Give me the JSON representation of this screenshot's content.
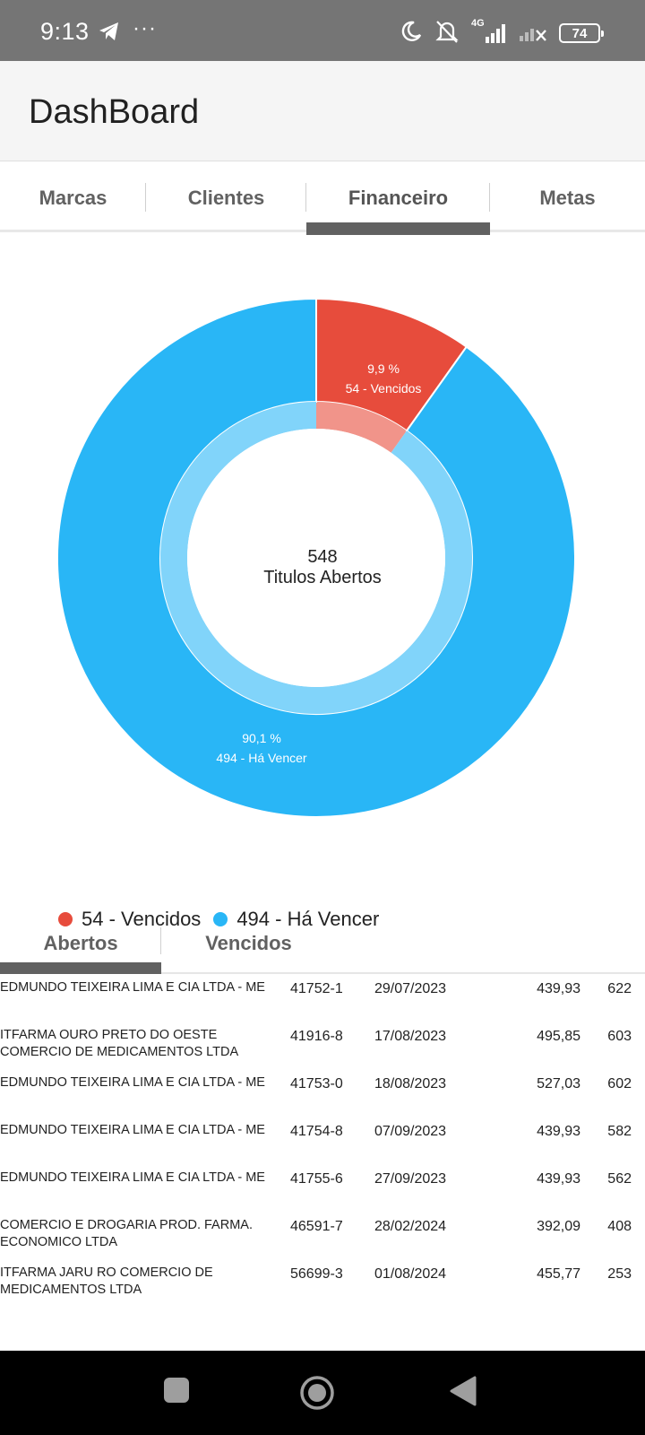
{
  "status_bar": {
    "time": "9:13",
    "more": "···",
    "network": "4G",
    "battery": "74",
    "icons": [
      "telegram-icon",
      "moon-icon",
      "bell-off-icon",
      "signal-icon",
      "signal-x-icon",
      "battery-icon"
    ]
  },
  "app_bar": {
    "title": "DashBoard"
  },
  "tabs": [
    {
      "label": "Marcas"
    },
    {
      "label": "Clientes"
    },
    {
      "label": "Financeiro",
      "active": true
    },
    {
      "label": "Metas"
    }
  ],
  "chart_data": {
    "type": "pie",
    "center_value": "548",
    "center_label": "Titulos Abertos",
    "slices": [
      {
        "label": "54 - Vencidos",
        "value": 54,
        "percent_label": "9,9 %",
        "color": "#e74c3c",
        "inner_color": "#f1948a"
      },
      {
        "label": "494 - Há Vencer",
        "value": 494,
        "percent_label": "90,1 %",
        "color": "#29b6f6",
        "inner_color": "#81d4fa"
      }
    ],
    "legend": [
      "54 - Vencidos",
      "494 - Há Vencer"
    ],
    "legend_position": "bottom-left"
  },
  "sub_tabs": [
    {
      "label": "Abertos",
      "active": true
    },
    {
      "label": "Vencidos"
    }
  ],
  "rows": [
    {
      "name": "EDMUNDO TEIXEIRA LIMA E CIA LTDA - ME",
      "code": "41752-1",
      "date": "29/07/2023",
      "value": "439,93",
      "days": "622"
    },
    {
      "name": "ITFARMA OURO PRETO DO OESTE COMERCIO DE MEDICAMENTOS LTDA",
      "code": "41916-8",
      "date": "17/08/2023",
      "value": "495,85",
      "days": "603"
    },
    {
      "name": "EDMUNDO TEIXEIRA LIMA E CIA LTDA - ME",
      "code": "41753-0",
      "date": "18/08/2023",
      "value": "527,03",
      "days": "602"
    },
    {
      "name": "EDMUNDO TEIXEIRA LIMA E CIA LTDA - ME",
      "code": "41754-8",
      "date": "07/09/2023",
      "value": "439,93",
      "days": "582"
    },
    {
      "name": "EDMUNDO TEIXEIRA LIMA E CIA LTDA - ME",
      "code": "41755-6",
      "date": "27/09/2023",
      "value": "439,93",
      "days": "562"
    },
    {
      "name": "COMERCIO E DROGARIA PROD. FARMA. ECONOMICO LTDA",
      "code": "46591-7",
      "date": "28/02/2024",
      "value": "392,09",
      "days": "408"
    },
    {
      "name": "ITFARMA JARU RO COMERCIO DE MEDICAMENTOS LTDA",
      "code": "56699-3",
      "date": "01/08/2024",
      "value": "455,77",
      "days": "253"
    }
  ],
  "nav_bar": {
    "buttons": [
      "recent-apps-button",
      "home-button",
      "back-button"
    ]
  }
}
